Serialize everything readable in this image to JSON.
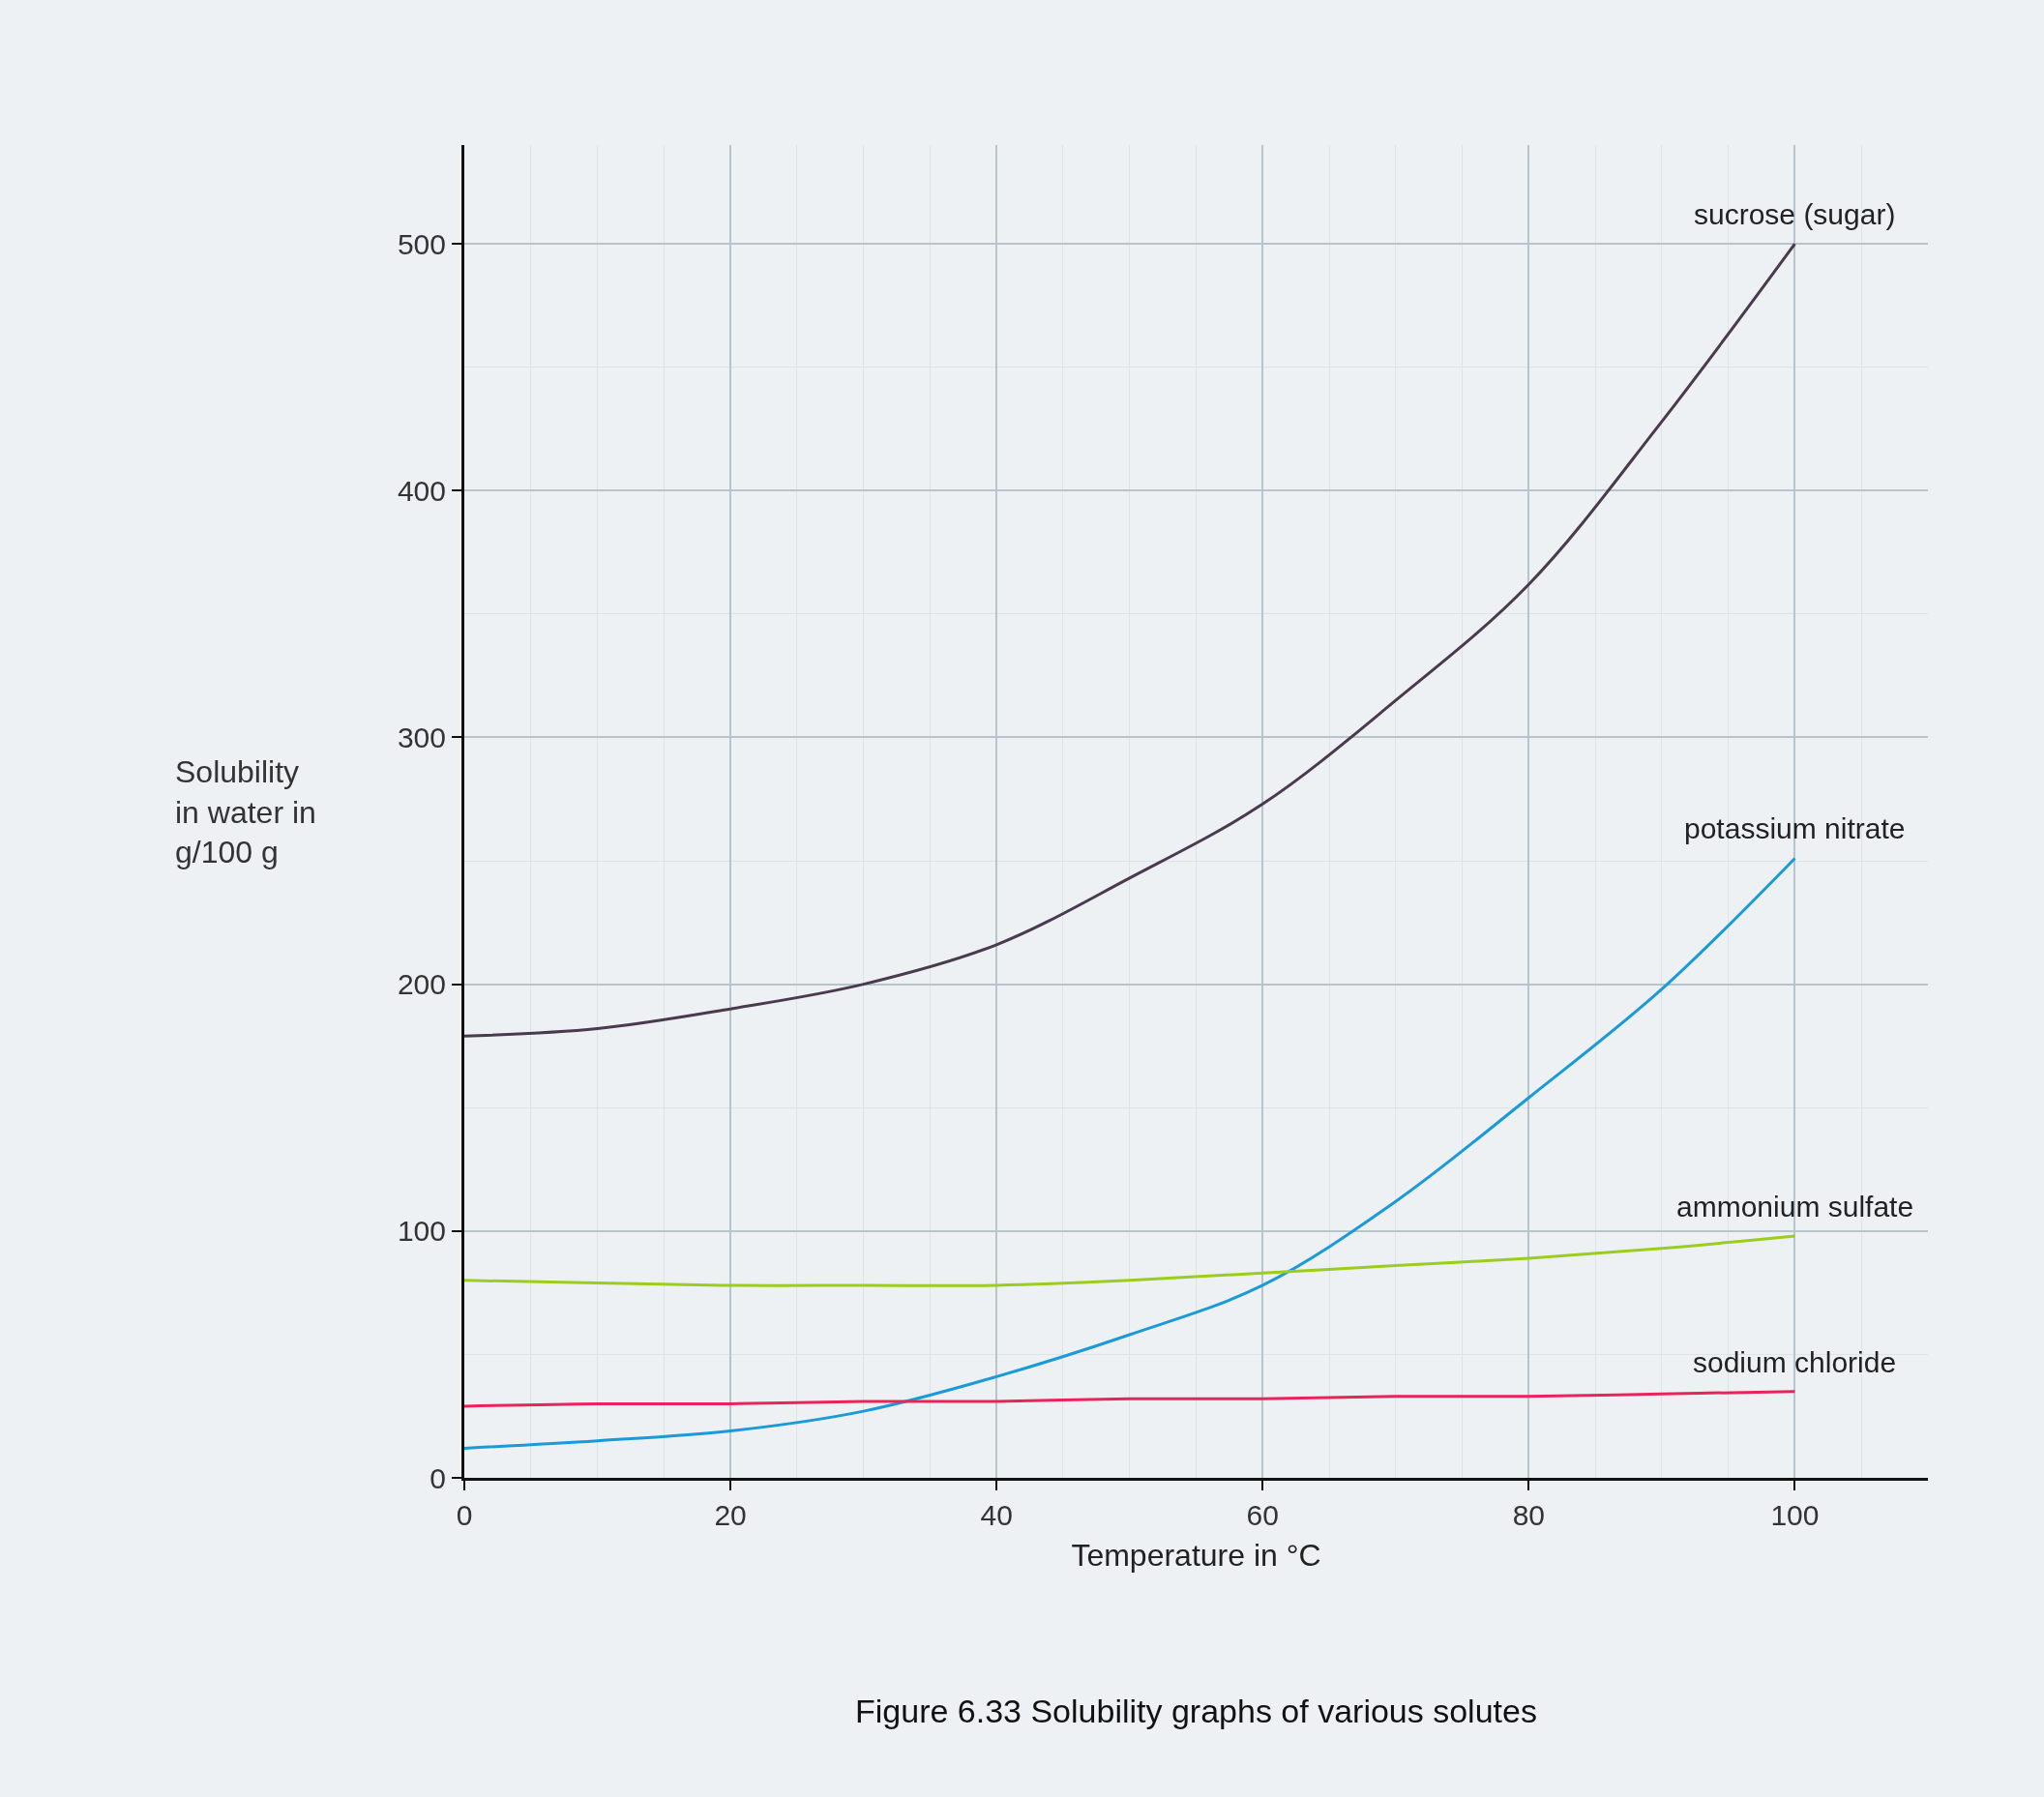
{
  "chart_data": {
    "type": "line",
    "title": "Figure 6.33 Solubility graphs of various solutes",
    "xlabel": "Temperature in °C",
    "ylabel": "Solubility\nin water in\ng/100 g",
    "x": [
      0,
      10,
      20,
      30,
      40,
      50,
      60,
      70,
      80,
      90,
      100
    ],
    "series": [
      {
        "name": "sucrose (sugar)",
        "color": "#4a3a4e",
        "values": [
          179,
          182,
          190,
          200,
          216,
          243,
          273,
          315,
          362,
          428,
          500
        ]
      },
      {
        "name": "potassium nitrate",
        "color": "#1a9ad6",
        "values": [
          12,
          15,
          19,
          27,
          41,
          58,
          78,
          112,
          154,
          198,
          251
        ]
      },
      {
        "name": "ammonium sulfate",
        "color": "#9acd1e",
        "values": [
          80,
          79,
          78,
          78,
          78,
          80,
          83,
          86,
          89,
          93,
          98
        ]
      },
      {
        "name": "sodium chloride",
        "color": "#e8245a",
        "values": [
          29,
          30,
          30,
          31,
          31,
          32,
          32,
          33,
          33,
          34,
          35
        ]
      }
    ],
    "xlim": [
      0,
      110
    ],
    "ylim": [
      0,
      540
    ],
    "xticks": [
      0,
      20,
      40,
      60,
      80,
      100
    ],
    "yticks": [
      0,
      100,
      200,
      300,
      400,
      500
    ],
    "grid": true,
    "legend": false,
    "marker": "none",
    "line_style": "solid"
  }
}
